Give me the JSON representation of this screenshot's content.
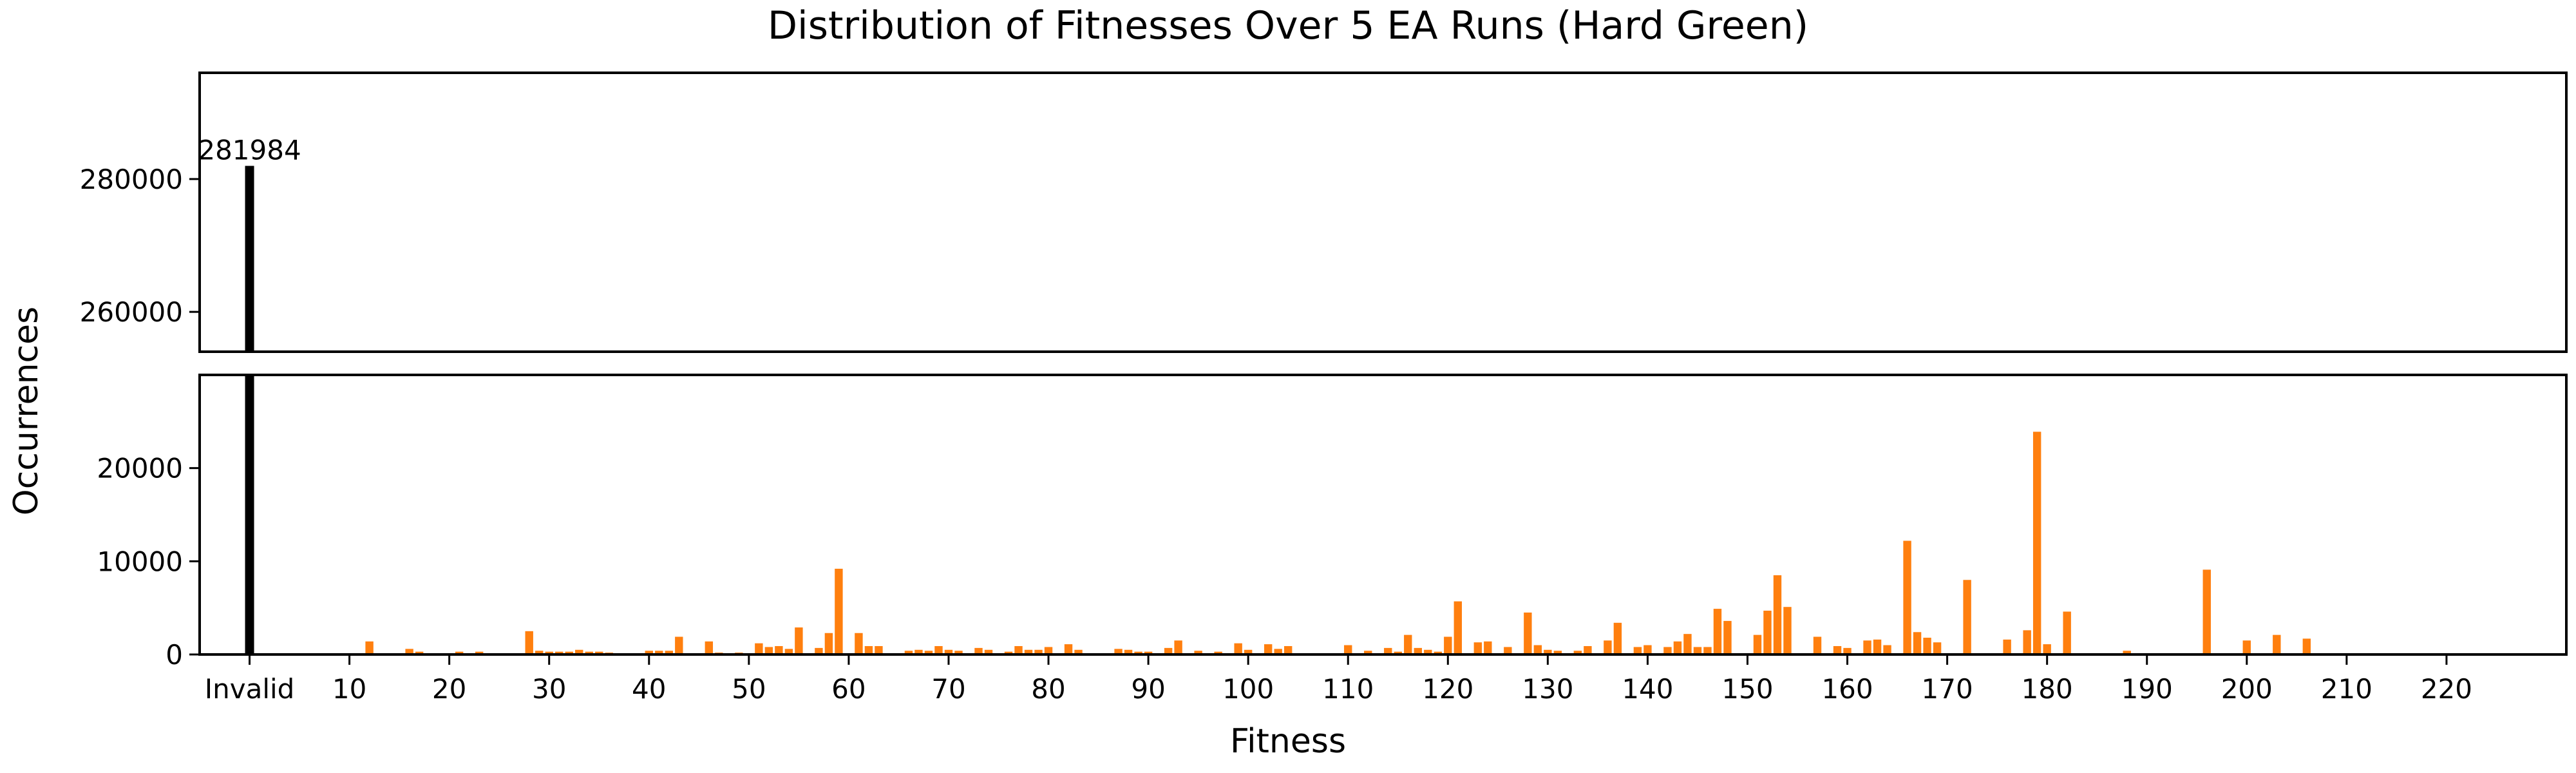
{
  "chart_data": {
    "type": "bar",
    "title": "Distribution of Fitnesses Over 5 EA Runs (Hard Green)",
    "xlabel": "Fitness",
    "ylabel": "Occurrences",
    "grid": false,
    "legend": false,
    "colors": {
      "bar": "#ff7f0e",
      "invalid_bar": "#000000",
      "axes": "#000000"
    },
    "xlim": [
      -5,
      232
    ],
    "x_ticks": [
      0,
      10,
      20,
      30,
      40,
      50,
      60,
      70,
      80,
      90,
      100,
      110,
      120,
      130,
      140,
      150,
      160,
      170,
      180,
      190,
      200,
      210,
      220
    ],
    "x_tick_labels": [
      "Invalid",
      "10",
      "20",
      "30",
      "40",
      "50",
      "60",
      "70",
      "80",
      "90",
      "100",
      "110",
      "120",
      "130",
      "140",
      "150",
      "160",
      "170",
      "180",
      "190",
      "200",
      "210",
      "220"
    ],
    "broken_y_axis": {
      "upper": {
        "ylim": [
          254000,
          296000
        ],
        "ticks": [
          260000,
          280000
        ]
      },
      "lower": {
        "ylim": [
          0,
          30000
        ],
        "ticks": [
          0,
          10000,
          20000
        ]
      }
    },
    "invalid": {
      "x": 0,
      "label": "Invalid",
      "value": 281984,
      "value_label": "281984"
    },
    "x": [
      12,
      16,
      17,
      21,
      23,
      28,
      29,
      30,
      31,
      32,
      33,
      34,
      35,
      36,
      40,
      41,
      42,
      43,
      46,
      47,
      49,
      51,
      52,
      53,
      54,
      55,
      57,
      58,
      59,
      61,
      62,
      63,
      66,
      67,
      68,
      69,
      70,
      71,
      73,
      74,
      76,
      77,
      78,
      79,
      80,
      82,
      83,
      87,
      88,
      89,
      90,
      92,
      93,
      95,
      97,
      99,
      100,
      102,
      103,
      104,
      110,
      112,
      114,
      115,
      116,
      117,
      118,
      119,
      120,
      121,
      123,
      124,
      126,
      128,
      129,
      130,
      131,
      133,
      134,
      136,
      137,
      139,
      140,
      142,
      143,
      144,
      145,
      146,
      147,
      148,
      151,
      152,
      153,
      154,
      157,
      159,
      160,
      162,
      163,
      164,
      166,
      167,
      168,
      169,
      172,
      176,
      178,
      179,
      180,
      182,
      188,
      196,
      200,
      203,
      206
    ],
    "values": [
      1400,
      600,
      300,
      300,
      300,
      2500,
      400,
      300,
      300,
      300,
      500,
      300,
      300,
      200,
      400,
      400,
      400,
      1900,
      1400,
      200,
      200,
      1200,
      800,
      900,
      600,
      2900,
      700,
      2300,
      9200,
      2300,
      900,
      900,
      400,
      500,
      400,
      900,
      500,
      400,
      700,
      500,
      300,
      900,
      500,
      500,
      800,
      1100,
      500,
      600,
      500,
      300,
      300,
      700,
      1500,
      400,
      300,
      1200,
      500,
      1100,
      600,
      900,
      1000,
      400,
      700,
      300,
      2100,
      700,
      500,
      300,
      1900,
      5700,
      1300,
      1400,
      800,
      4500,
      1000,
      500,
      400,
      400,
      900,
      1500,
      3400,
      800,
      1000,
      800,
      1400,
      2200,
      800,
      800,
      4900,
      3600,
      2100,
      4700,
      8500,
      5100,
      1900,
      900,
      700,
      1500,
      1600,
      1000,
      12200,
      2400,
      1800,
      1300,
      8000,
      1600,
      2600,
      23900,
      1100,
      4600,
      400,
      9100,
      1500,
      2100,
      1700
    ]
  }
}
